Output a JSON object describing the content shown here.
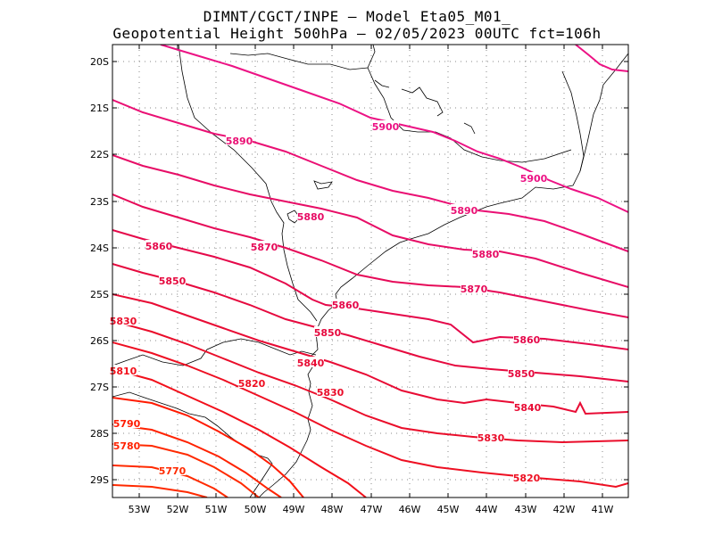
{
  "title": {
    "line1": "DIMNT/CGCT/INPE —  Model Eta05_M01_",
    "line2": "Geopotential Height 500hPa —  02/05/2023 00UTC fct=106h"
  },
  "axes": {
    "lat_labels": [
      "20S",
      "21S",
      "22S",
      "23S",
      "24S",
      "25S",
      "26S",
      "27S",
      "28S",
      "29S"
    ],
    "lon_labels": [
      "53W",
      "52W",
      "51W",
      "50W",
      "49W",
      "48W",
      "47W",
      "46W",
      "45W",
      "44W",
      "43W",
      "42W",
      "41W"
    ]
  },
  "contours": {
    "labels": [
      "5900",
      "5890",
      "5900",
      "5890",
      "5880",
      "5870",
      "5860",
      "5880",
      "5850",
      "5870",
      "5860",
      "5830",
      "5850",
      "5860",
      "5840",
      "5810",
      "5820",
      "5850",
      "5830",
      "5840",
      "5790",
      "5830",
      "5780",
      "5770",
      "5820"
    ],
    "colors": {
      "5770": "#ff2a00",
      "5780": "#ff2200",
      "5790": "#ff1a00",
      "5810": "#f20f1a",
      "5820": "#ee0f22",
      "5830": "#ea0d2a",
      "5840": "#e80b34",
      "5850": "#e6093e",
      "5860": "#e5084a",
      "5870": "#e60a58",
      "5880": "#e70d66",
      "5890": "#ea1074",
      "5900": "#ec1284"
    }
  },
  "colors": {
    "grid": "#8a8a8a",
    "coast": "#000000",
    "frame": "#000000"
  }
}
